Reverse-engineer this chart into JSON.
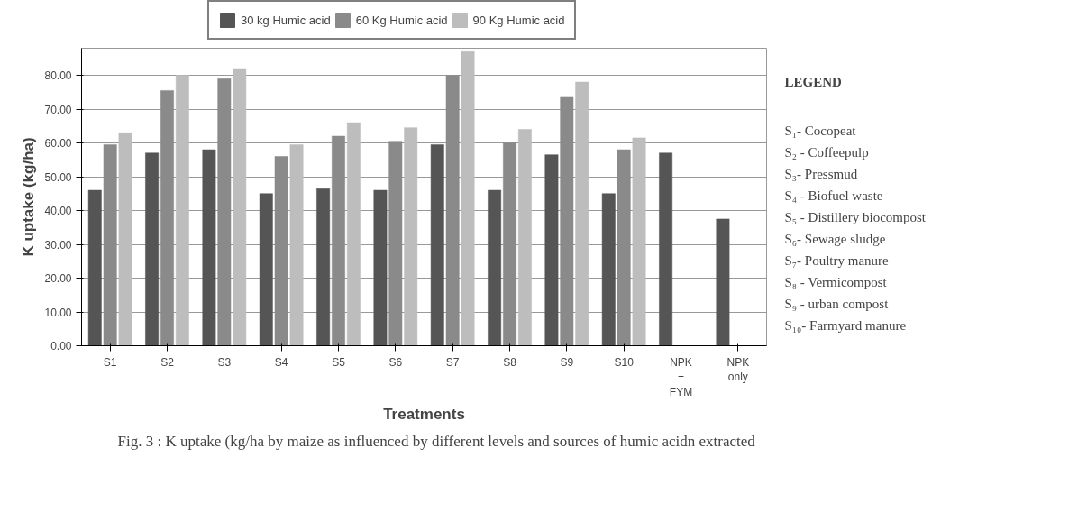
{
  "chart_data": {
    "type": "bar",
    "xlabel": "Treatments",
    "ylabel": "K uptake (kg/ha)",
    "categories": [
      "S1",
      "S2",
      "S3",
      "S4",
      "S5",
      "S6",
      "S7",
      "S8",
      "S9",
      "S10",
      "NPK\n+\nFYM",
      "NPK\nonly"
    ],
    "series": [
      {
        "name": "30 kg Humic acid",
        "color": "#555555",
        "values": [
          46,
          57,
          58,
          45,
          46.5,
          46,
          59.5,
          46,
          56.5,
          45,
          57,
          37.5
        ]
      },
      {
        "name": "60 Kg Humic acid",
        "color": "#8a8a8a",
        "values": [
          59.5,
          75.5,
          79,
          56,
          62,
          60.5,
          80,
          60,
          73.5,
          58,
          0,
          0
        ]
      },
      {
        "name": "90 Kg Humic acid",
        "color": "#bdbdbd",
        "values": [
          63,
          80,
          82,
          59.5,
          66,
          64.5,
          87,
          64,
          78,
          61.5,
          0,
          0
        ]
      }
    ],
    "ylim": [
      0,
      88
    ],
    "yticks": [
      {
        "value": 0,
        "label": "0.00"
      },
      {
        "value": 10,
        "label": "10.00"
      },
      {
        "value": 20,
        "label": "20.00"
      },
      {
        "value": 30,
        "label": "30.00"
      },
      {
        "value": 40,
        "label": "40.00"
      },
      {
        "value": 50,
        "label": "50.00"
      },
      {
        "value": 60,
        "label": "60.00"
      },
      {
        "value": 70,
        "label": "70.00"
      },
      {
        "value": 80,
        "label": "80.00"
      }
    ],
    "grid": "y",
    "legend": "top",
    "annotations": [
      "LEGEND",
      "S₁- Cocopeat",
      "S₂ - Coffeepulp",
      "S₃- Pressmud",
      "S₄ - Biofuel waste",
      "S₅ - Distillery biocompost",
      "S₆- Sewage sludge",
      "S₇- Poultry manure",
      "S₈ - Vermicompost",
      "S₉ - urban compost",
      "S₁₀- Farmyard manure",
      "Fig. 3 : K uptake (kg/ha by maize as influenced by different levels and sources of humic acidn extracted"
    ]
  }
}
